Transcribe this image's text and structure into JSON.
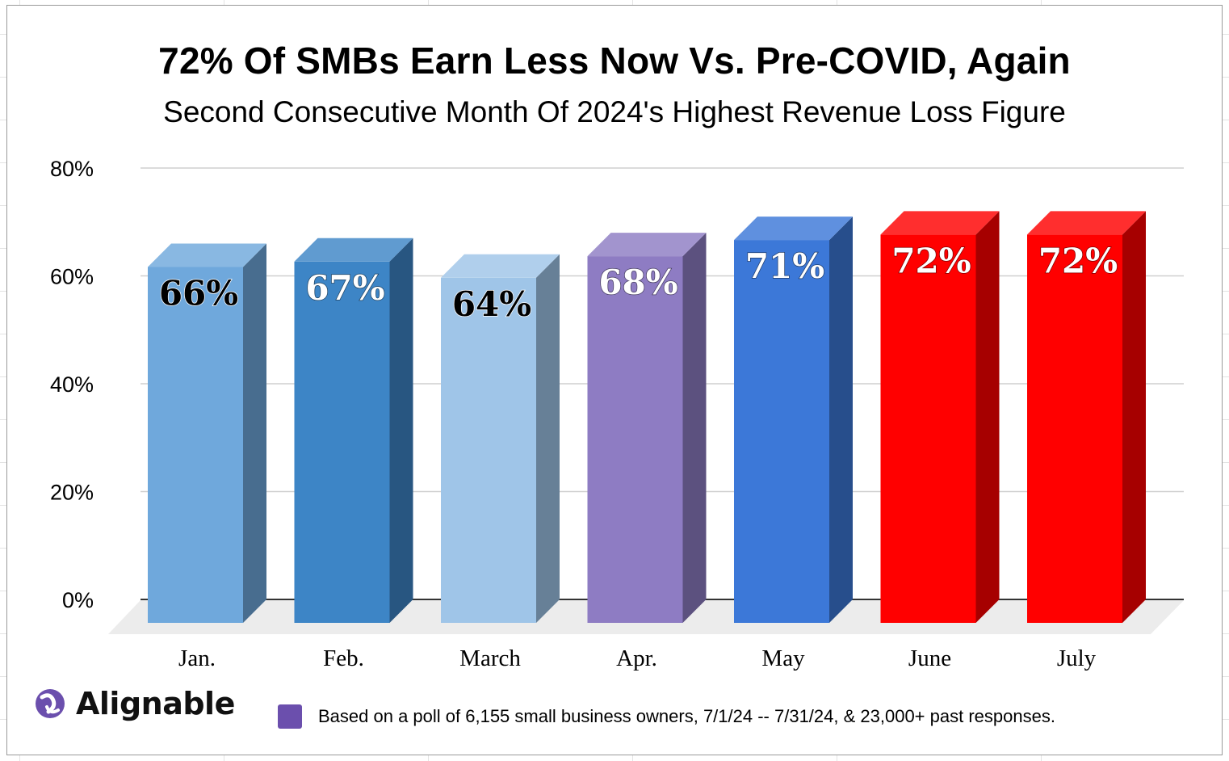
{
  "chart_data": {
    "type": "bar",
    "title": "72% Of SMBs Earn Less Now Vs. Pre-COVID, Again",
    "subtitle": "Second Consecutive Month Of 2024's Highest Revenue Loss Figure",
    "categories": [
      "Jan.",
      "Feb.",
      "March",
      "Apr.",
      "May",
      "June",
      "July"
    ],
    "values": [
      66,
      67,
      64,
      68,
      71,
      72,
      72
    ],
    "data_labels": [
      "66%",
      "67%",
      "64%",
      "68%",
      "71%",
      "72%",
      "72%"
    ],
    "y_ticks": [
      "0%",
      "20%",
      "40%",
      "60%",
      "80%"
    ],
    "ylim": [
      0,
      80
    ],
    "grid": true,
    "style": "3d-column",
    "bar_colors": [
      "#6fa8dc",
      "#3d85c6",
      "#9fc5e8",
      "#8e7cc3",
      "#3c78d8",
      "#ff0000",
      "#ff0000"
    ],
    "label_colors": [
      "#000000",
      "#ffffff",
      "#000000",
      "#ffffff",
      "#ffffff",
      "#ffffff",
      "#ffffff"
    ]
  },
  "branding": {
    "logo_text": "Alignable",
    "logo_icon": "alignable-logo-icon"
  },
  "footnote": {
    "text": "Based on a poll of 6,155 small business owners, 7/1/24 -- 7/31/24, & 23,000+ past responses.",
    "swatch_color": "#6b4fad"
  }
}
